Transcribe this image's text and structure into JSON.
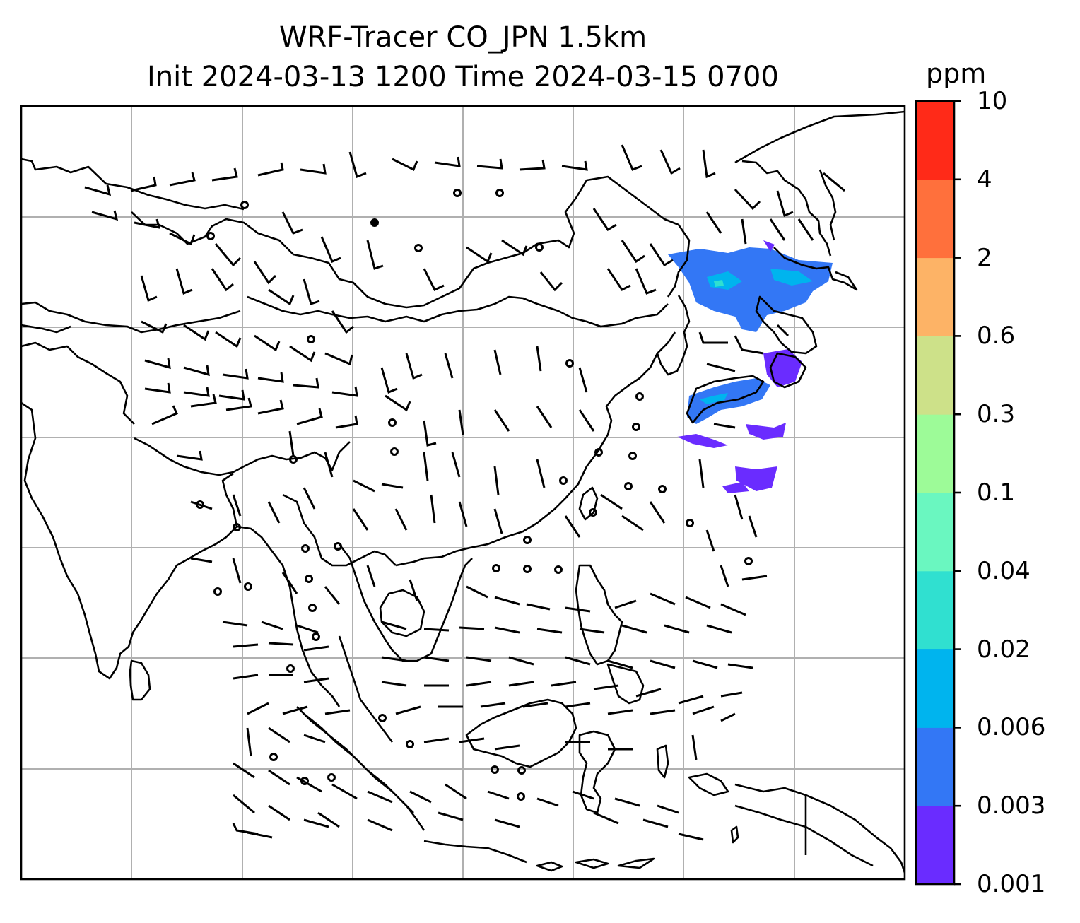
{
  "title": {
    "line1": "WRF-Tracer CO_JPN 1.5km",
    "line2": "Init 2024-03-13 1200 Time 2024-03-15 0700"
  },
  "colorbar": {
    "unit": "ppm",
    "levels": [
      "0.001",
      "0.003",
      "0.006",
      "0.02",
      "0.04",
      "0.1",
      "0.3",
      "0.6",
      "2",
      "4",
      "10"
    ],
    "colors": [
      "#6a2cff",
      "#3377f5",
      "#00b4ee",
      "#30e0d0",
      "#6af7c0",
      "#9dfb98",
      "#cde189",
      "#fdb366",
      "#ff703c",
      "#ff2a18"
    ]
  },
  "map": {
    "gridlines": true,
    "coastline_color": "#000000",
    "grid_color": "#b0b0b0",
    "plume_colors": [
      "#6a2cff",
      "#3377f5",
      "#00b4ee",
      "#30e0d0"
    ]
  }
}
